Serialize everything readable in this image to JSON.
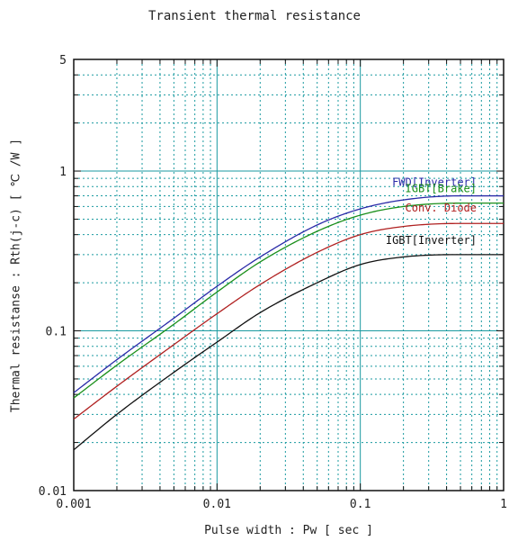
{
  "chart_data": {
    "type": "line",
    "title": "Transient thermal resistance",
    "xlabel": "Pulse width  :  Pw  [ sec ]",
    "ylabel": "Thermal resistanse  :  Rth(j-c)  [ ℃ /W ]",
    "x_scale": "log",
    "y_scale": "log",
    "xlim": [
      0.001,
      1
    ],
    "ylim": [
      0.01,
      5
    ],
    "x_ticks": [
      {
        "value": 0.001,
        "label": "0.001"
      },
      {
        "value": 0.01,
        "label": "0.01"
      },
      {
        "value": 0.1,
        "label": "0.1"
      },
      {
        "value": 1,
        "label": "1"
      }
    ],
    "y_ticks": [
      {
        "value": 0.01,
        "label": "0.01"
      },
      {
        "value": 0.1,
        "label": "0.1"
      },
      {
        "value": 1,
        "label": "1"
      },
      {
        "value": 5,
        "label": "5"
      }
    ],
    "grid": true,
    "x": [
      0.001,
      0.002,
      0.005,
      0.01,
      0.02,
      0.05,
      0.1,
      0.2,
      0.5,
      1
    ],
    "series": [
      {
        "name": "FWD[Inverter]",
        "color": "#2a2aa8",
        "values": [
          0.041,
          0.066,
          0.12,
          0.19,
          0.29,
          0.46,
          0.58,
          0.66,
          0.7,
          0.7
        ]
      },
      {
        "name": "IGBT[Brake]",
        "color": "#1a8f1a",
        "values": [
          0.038,
          0.061,
          0.11,
          0.175,
          0.27,
          0.42,
          0.53,
          0.6,
          0.63,
          0.63
        ]
      },
      {
        "name": "Conv. Diode",
        "color": "#b02020",
        "values": [
          0.028,
          0.045,
          0.082,
          0.128,
          0.195,
          0.31,
          0.4,
          0.45,
          0.47,
          0.47
        ]
      },
      {
        "name": "IGBT[Inverter]",
        "color": "#111111",
        "values": [
          0.018,
          0.03,
          0.055,
          0.085,
          0.13,
          0.2,
          0.26,
          0.29,
          0.3,
          0.3
        ]
      }
    ]
  }
}
